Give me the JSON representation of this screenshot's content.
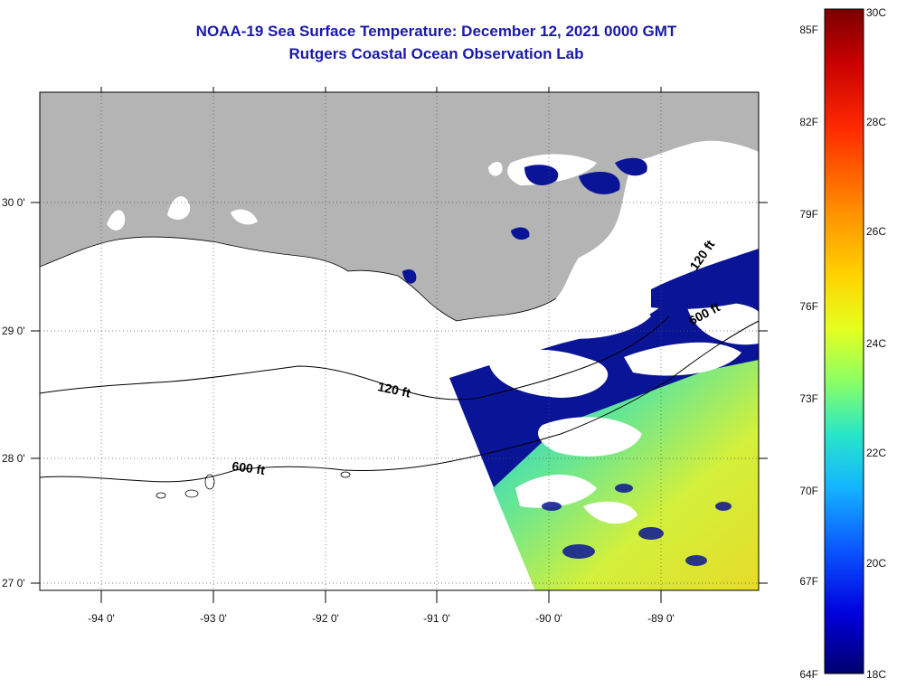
{
  "header": {
    "title": "NOAA-19 Sea Surface Temperature:  December 12, 2021 0000 GMT",
    "subtitle": "Rutgers Coastal Ocean Observation Lab"
  },
  "map": {
    "lat_labels": [
      "30 0'",
      "29 0'",
      "28 0'",
      "27 0'"
    ],
    "lon_labels": [
      "-94 0'",
      "-93 0'",
      "-92 0'",
      "-91 0'",
      "-90 0'",
      "-89 0'"
    ],
    "contour_labels": [
      "120 ft",
      "600 ft",
      "120 ft",
      "600 ft"
    ],
    "colors": {
      "land": "#b4b4b4",
      "ocean_no_data": "#ffffff",
      "cold_water": "#0a1496"
    }
  },
  "colorbar": {
    "fahrenheit_labels": [
      "85F",
      "82F",
      "79F",
      "76F",
      "73F",
      "70F",
      "67F",
      "64F"
    ],
    "celsius_labels": [
      "30C",
      "28C",
      "26C",
      "24C",
      "22C",
      "20C",
      "18C"
    ],
    "gradient_colors": [
      "#7a0000",
      "#c80000",
      "#ff2a00",
      "#ff8c00",
      "#ffd200",
      "#e6ff1e",
      "#8cff64",
      "#28e6c8",
      "#14b4ff",
      "#0a50ff",
      "#0000dc",
      "#00006e"
    ]
  }
}
